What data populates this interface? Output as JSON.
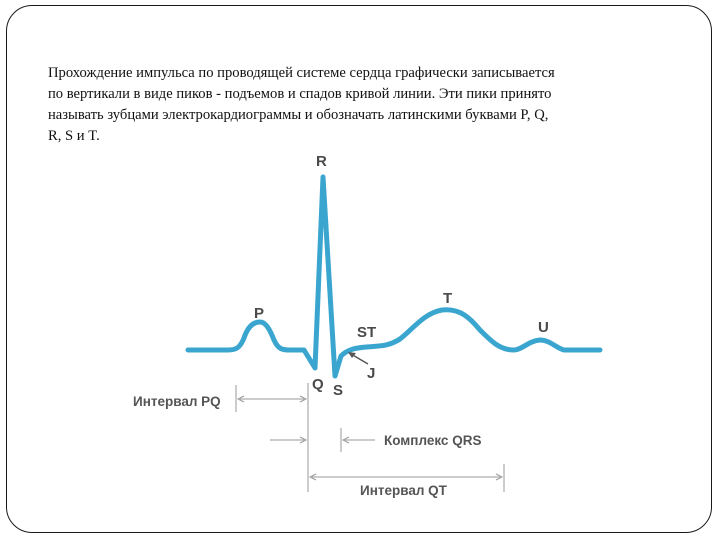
{
  "slide": {
    "paragraph_lines": [
      "Прохождение импульса по проводящей системе сердца графически записывается",
      "по вертикали в виде пиков - подъемов и спадов кривой линии. Эти пики принято",
      "называть зубцами электрокардиограммы и обозначать латинскими буквами P, Q,",
      "R, S и T."
    ]
  },
  "diagram": {
    "wave_labels": {
      "R": "R",
      "P": "P",
      "T": "T",
      "U": "U",
      "ST": "ST",
      "J": "J",
      "Q": "Q",
      "S": "S"
    },
    "intervals": {
      "pq": "Интервал PQ",
      "qrs": "Комплекс QRS",
      "qt": "Интервал QT"
    },
    "colors": {
      "trace": "#3aa6cf",
      "label": "#4a4a4a",
      "interval_line": "#9a9a9a"
    }
  }
}
